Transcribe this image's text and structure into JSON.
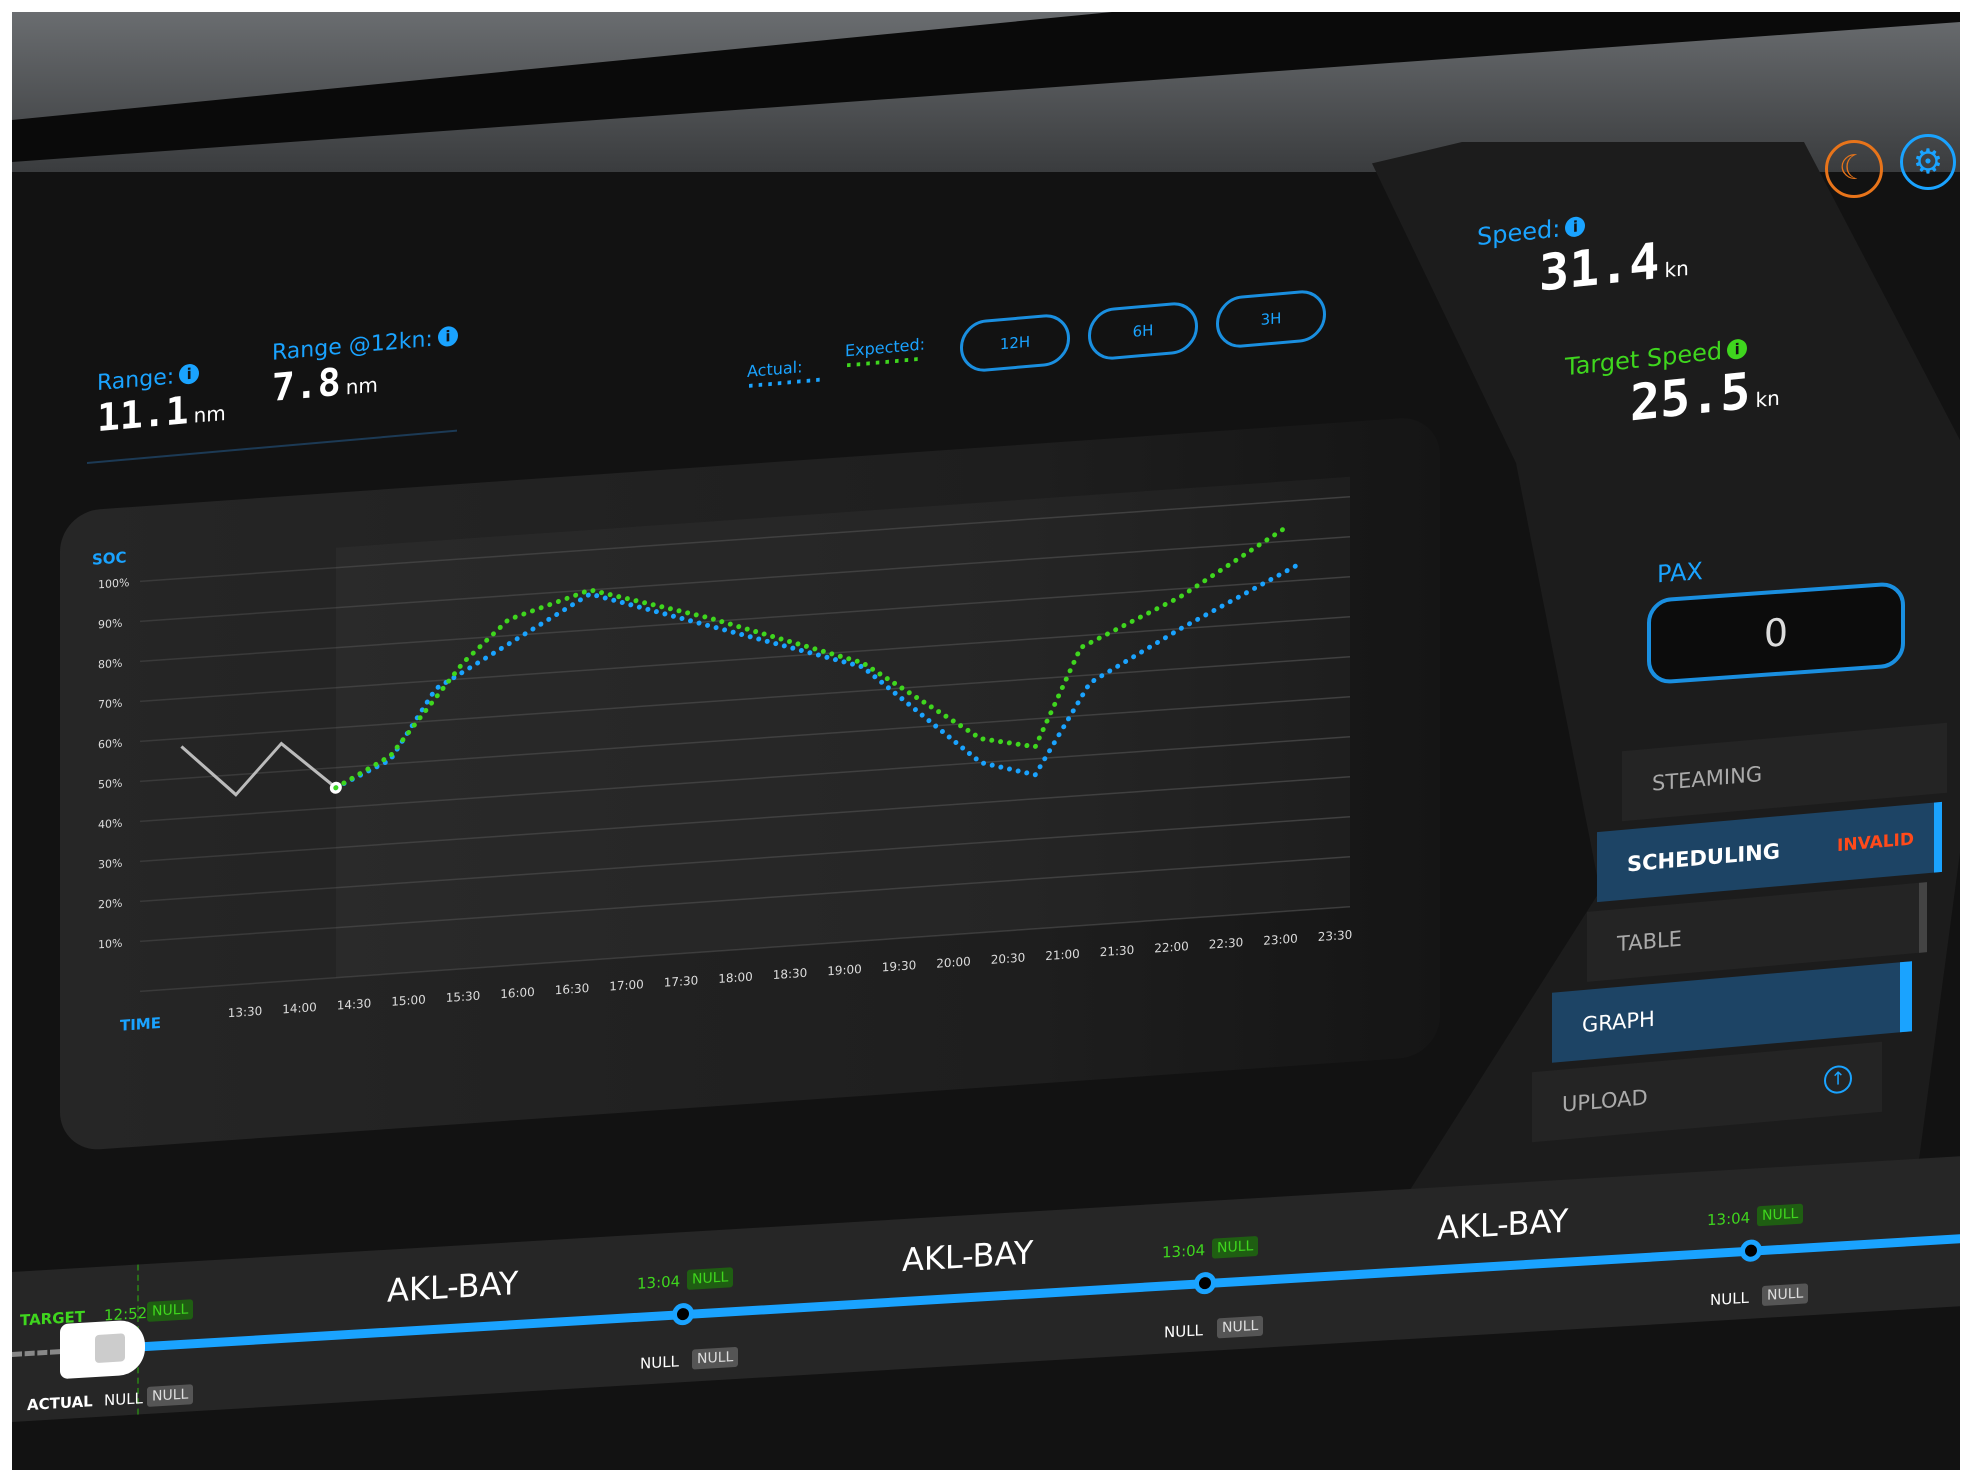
{
  "range": {
    "label": "Range:",
    "value": "11.1",
    "unit": "nm"
  },
  "range12": {
    "label": "Range @12kn:",
    "value": "7.8",
    "unit": "nm"
  },
  "legend": {
    "actual": "Actual:",
    "expected": "Expected:"
  },
  "range_buttons": [
    "12H",
    "6H",
    "3H"
  ],
  "header_icons": {
    "night_mode": "moon-icon",
    "settings": "gear-icon"
  },
  "speed": {
    "label": "Speed:",
    "value": "31.4",
    "unit": "kn"
  },
  "target_speed": {
    "label": "Target Speed",
    "value": "25.5",
    "unit": "kn"
  },
  "pax": {
    "label": "PAX",
    "value": "0"
  },
  "menu": [
    {
      "label": "STEAMING"
    },
    {
      "label": "SCHEDULING",
      "badge": "INVALID",
      "selected": true
    },
    {
      "label": "TABLE"
    },
    {
      "label": "GRAPH",
      "selected": true
    },
    {
      "label": "UPLOAD",
      "icon": "upload-icon"
    }
  ],
  "colors": {
    "accent": "#1aa3ff",
    "expected": "#3fd61e",
    "invalid": "#ff4a1a",
    "moon": "#e8741a"
  },
  "chart_data": {
    "type": "line",
    "ylabel": "SOC",
    "xlabel": "TIME",
    "yticks": [
      "100%",
      "90%",
      "80%",
      "70%",
      "60%",
      "50%",
      "40%",
      "30%",
      "20%",
      "10%"
    ],
    "xticks": [
      "13:30",
      "14:00",
      "14:30",
      "15:00",
      "15:30",
      "16:00",
      "16:30",
      "17:00",
      "17:30",
      "18:00",
      "18:30",
      "19:00",
      "19:30",
      "20:00",
      "20:30",
      "21:00",
      "21:30",
      "22:00",
      "22:30",
      "23:00",
      "23:30"
    ],
    "ylim": [
      10,
      100
    ],
    "history": {
      "x": [
        "12:55",
        "13:25",
        "13:50",
        "14:20"
      ],
      "y": [
        58,
        45,
        57,
        45
      ]
    },
    "series": [
      {
        "name": "Actual:",
        "color": "#1aa3ff",
        "style": "dotted",
        "x": [
          "14:20",
          "14:50",
          "15:15",
          "16:40",
          "19:10",
          "20:15",
          "20:45",
          "21:15",
          "22:05",
          "23:10"
        ],
        "y": [
          45,
          51,
          68,
          89,
          66,
          40,
          36,
          58,
          70,
          84
        ]
      },
      {
        "name": "Expected:",
        "color": "#3fd61e",
        "style": "dotted",
        "x": [
          "14:20",
          "14:50",
          "15:30",
          "15:55",
          "16:40",
          "17:45",
          "19:10",
          "20:15",
          "20:45",
          "21:10",
          "22:05",
          "23:05"
        ],
        "y": [
          45,
          52,
          74,
          84,
          90,
          81,
          67,
          46,
          43,
          67,
          78,
          94
        ]
      }
    ],
    "grid": true
  },
  "timeline": {
    "target_label": "TARGET",
    "actual_label": "ACTUAL",
    "start": {
      "target_time": "12:52",
      "target_badge": "NULL",
      "actual_time": "NULL",
      "actual_badge": "NULL"
    },
    "legs": [
      "AKL-BAY",
      "AKL-BAY",
      "AKL-BAY"
    ],
    "stops": [
      {
        "target_time": "13:04",
        "target_badge": "NULL",
        "actual_time": "NULL",
        "actual_badge": "NULL"
      },
      {
        "target_time": "13:04",
        "target_badge": "NULL",
        "actual_time": "NULL",
        "actual_badge": "NULL"
      },
      {
        "target_time": "13:04",
        "target_badge": "NULL",
        "actual_time": "NULL",
        "actual_badge": "NULL"
      }
    ]
  }
}
